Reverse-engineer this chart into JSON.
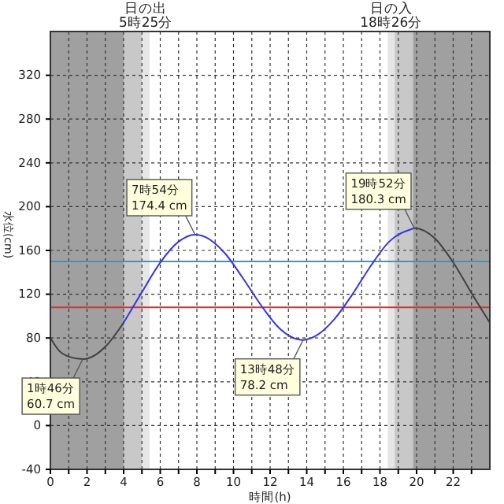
{
  "chart_data": {
    "type": "line",
    "xlabel": "時間(h)",
    "ylabel": "水位(cm)",
    "xlim": [
      0,
      24
    ],
    "ylim": [
      -40,
      360
    ],
    "xticks": [
      0,
      {
        "value": 1,
        "label": null
      },
      2,
      {
        "value": 3,
        "label": null
      },
      4,
      {
        "value": 5,
        "label": null
      },
      6,
      {
        "value": 7,
        "label": null
      },
      8,
      {
        "value": 9,
        "label": null
      },
      10,
      {
        "value": 11,
        "label": null
      },
      12,
      {
        "value": 13,
        "label": null
      },
      14,
      {
        "value": 15,
        "label": null
      },
      16,
      {
        "value": 17,
        "label": null
      },
      18,
      {
        "value": 19,
        "label": null
      },
      20,
      {
        "value": 21,
        "label": null
      },
      22,
      {
        "value": 23,
        "label": null
      }
    ],
    "yticks": [
      -40,
      0,
      40,
      80,
      120,
      160,
      200,
      240,
      280,
      320
    ],
    "grid": true,
    "line_style": "solid",
    "marker": "none",
    "bands": [
      {
        "axis": "x",
        "from": 0,
        "to": 4,
        "color": "#a0a0a0"
      },
      {
        "axis": "x",
        "from": 4,
        "to": 5,
        "color": "#c8c8c8"
      },
      {
        "axis": "x",
        "from": 5,
        "to": 5.42,
        "color": "#e6e6e6",
        "label": "日の出\n5時25分"
      },
      {
        "axis": "x",
        "from": 18.43,
        "to": 18.8,
        "color": "#e6e6e6",
        "label": "日の入\n18時26分"
      },
      {
        "axis": "x",
        "from": 18.8,
        "to": 19.8,
        "color": "#c8c8c8"
      },
      {
        "axis": "x",
        "from": 19.8,
        "to": 24,
        "color": "#a0a0a0"
      }
    ],
    "ref_lines": [
      {
        "axis": "y",
        "value": 108,
        "color": "#e03030"
      },
      {
        "axis": "y",
        "value": 150,
        "color": "#3399cc"
      }
    ],
    "series": [
      {
        "color": "#404040",
        "x": [
          0,
          0.5,
          1,
          1.77,
          2.5,
          3,
          4
        ],
        "values": [
          80,
          68,
          63,
          60.7,
          65,
          72,
          94
        ]
      },
      {
        "color": "#3333ee",
        "x": [
          4,
          5,
          6,
          7,
          7.9,
          8.5,
          9.5,
          10.5,
          11.5,
          12.5,
          13.8,
          14.5,
          15.5,
          16.5,
          17.5,
          18.5,
          19.8
        ],
        "values": [
          94,
          122,
          149,
          168,
          174.4,
          172,
          158,
          135,
          110,
          89,
          78.2,
          82,
          97,
          120,
          146,
          168,
          180
        ]
      },
      {
        "color": "#404040",
        "x": [
          19.8,
          19.87,
          21,
          22,
          23,
          24
        ],
        "values": [
          180,
          180.3,
          171,
          149,
          121,
          94
        ]
      }
    ],
    "annotations": [
      {
        "text": "1時46分\n60.7 cm",
        "x": 1.77,
        "y": 60.7
      },
      {
        "text": "7時54分\n174.4 cm",
        "x": 7.9,
        "y": 174.4
      },
      {
        "text": "13時48分\n78.2 cm",
        "x": 13.8,
        "y": 78.2
      },
      {
        "text": "19時52分\n180.3 cm",
        "x": 19.87,
        "y": 180.3
      }
    ]
  }
}
